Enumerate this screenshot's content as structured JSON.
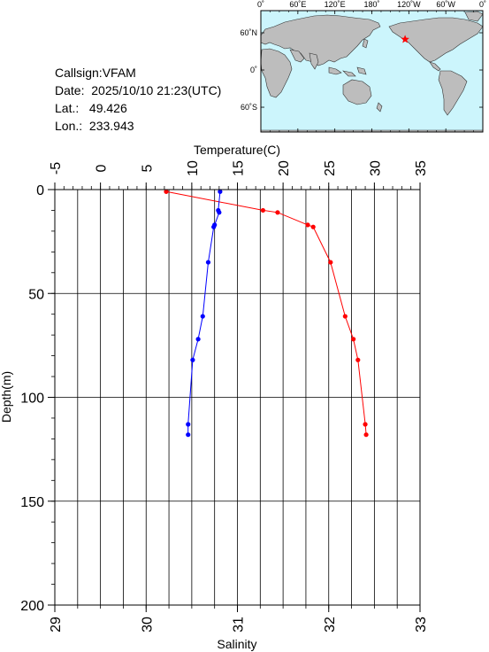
{
  "station": {
    "callsign_label": "Callsign:",
    "callsign": "VFAM",
    "date_label": "Date:",
    "date": "2025/10/10 21:23(UTC)",
    "lat_label": "Lat.:",
    "lat": "49.426",
    "lon_label": "Lon.:",
    "lon": "233.943"
  },
  "map": {
    "lon_labels": [
      "0˚",
      "60˚E",
      "120˚E",
      "180˚",
      "120˚W",
      "60˚W",
      "0˚"
    ],
    "lat_labels": [
      "60˚N",
      "0˚",
      "60˚S"
    ],
    "ocean_color": "#ccf5fc",
    "land_color": "#bdbdbd",
    "marker_color": "#ff0000",
    "marker_icon": "star-icon",
    "marker_lat": 49.426,
    "marker_lon": 233.943
  },
  "chart_data": {
    "type": "line",
    "title": "",
    "ylabel": "Depth(m)",
    "ylim": [
      0,
      200
    ],
    "y_ticks": [
      0,
      50,
      100,
      150,
      200
    ],
    "temp_axis": {
      "label": "Temperature(C)",
      "range": [
        -5,
        35
      ],
      "ticks": [
        -5,
        0,
        5,
        10,
        15,
        20,
        25,
        30,
        35
      ]
    },
    "sal_axis": {
      "label": "Salinity",
      "range": [
        29,
        33
      ],
      "ticks": [
        29,
        30,
        31,
        32,
        33
      ]
    },
    "grid": true,
    "series": [
      {
        "color": "#ff0000",
        "axis": "temperature",
        "points": [
          {
            "depth": 1,
            "value": 7.2
          },
          {
            "depth": 10,
            "value": 17.8
          },
          {
            "depth": 11,
            "value": 19.4
          },
          {
            "depth": 17,
            "value": 22.7
          },
          {
            "depth": 18,
            "value": 23.3
          },
          {
            "depth": 35,
            "value": 25.2
          },
          {
            "depth": 61,
            "value": 26.8
          },
          {
            "depth": 72,
            "value": 27.7
          },
          {
            "depth": 82,
            "value": 28.2
          },
          {
            "depth": 113,
            "value": 29.0
          },
          {
            "depth": 118,
            "value": 29.1
          }
        ]
      },
      {
        "color": "#0000ff",
        "axis": "salinity",
        "points": [
          {
            "depth": 1,
            "value": 30.81
          },
          {
            "depth": 10,
            "value": 30.79
          },
          {
            "depth": 11,
            "value": 30.8
          },
          {
            "depth": 17,
            "value": 30.75
          },
          {
            "depth": 18,
            "value": 30.74
          },
          {
            "depth": 35,
            "value": 30.68
          },
          {
            "depth": 61,
            "value": 30.62
          },
          {
            "depth": 72,
            "value": 30.57
          },
          {
            "depth": 82,
            "value": 30.51
          },
          {
            "depth": 113,
            "value": 30.46
          },
          {
            "depth": 118,
            "value": 30.46
          }
        ]
      }
    ]
  }
}
